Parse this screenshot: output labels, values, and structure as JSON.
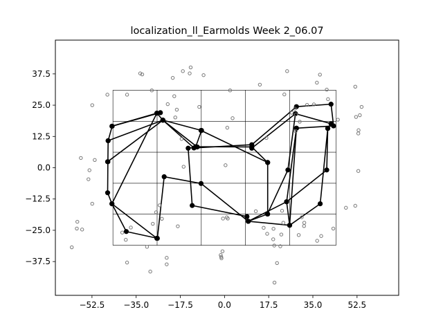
{
  "chart_data": {
    "type": "scatter",
    "title": "localization_ll_Earmolds Week 2_06.07",
    "xlabel": "",
    "ylabel": "",
    "xlim": [
      -67,
      69
    ],
    "ylim": [
      -51,
      51
    ],
    "xticks": [
      -52.5,
      -35.0,
      -17.5,
      0.0,
      17.5,
      35.0,
      52.5
    ],
    "xtick_labels": [
      "−52.5",
      "−35.0",
      "−17.5",
      "0.0",
      "17.5",
      "35.0",
      "52.5"
    ],
    "yticks": [
      -37.5,
      -25.0,
      -12.5,
      0.0,
      12.5,
      25.0,
      37.5
    ],
    "ytick_labels": [
      "−37.5",
      "−25.0",
      "−12.5",
      "0.0",
      "12.5",
      "25.0",
      "37.5"
    ],
    "grid_on": false,
    "colors": {
      "response_points": "#777777",
      "polygon": "#000000"
    },
    "grid_box": {
      "x_lines": [
        -44.2,
        -26.7,
        -9.2,
        8.3,
        25.8,
        44.2
      ],
      "y_lines": [
        31.0,
        18.5,
        6.2,
        -6.2,
        -18.5,
        -31.0
      ]
    },
    "response_points": [
      [
        -60.5,
        -31.8
      ],
      [
        -58.5,
        -24.3
      ],
      [
        -58.3,
        -21.6
      ],
      [
        -56.4,
        -24.7
      ],
      [
        -52.4,
        -14.4
      ],
      [
        -53.5,
        -1.0
      ],
      [
        -53.9,
        -4.6
      ],
      [
        -52.4,
        25.0
      ],
      [
        -51.4,
        3.1
      ],
      [
        -56.9,
        3.9
      ],
      [
        -46.4,
        29.2
      ],
      [
        -40.5,
        -25.9
      ],
      [
        -38.6,
        29.2
      ],
      [
        -39.1,
        -28.8
      ],
      [
        -38.6,
        -37.9
      ],
      [
        -37.1,
        -23.9
      ],
      [
        -33.4,
        37.7
      ],
      [
        -32.6,
        37.3
      ],
      [
        -30.7,
        -31.6
      ],
      [
        -29.4,
        -41.5
      ],
      [
        -28.4,
        -22.4
      ],
      [
        -28.8,
        30.9
      ],
      [
        -27.1,
        -17.8
      ],
      [
        -25.7,
        -15.0
      ],
      [
        -24.8,
        -20.4
      ],
      [
        -22.9,
        -36.0
      ],
      [
        -22.9,
        -38.6
      ],
      [
        -22.5,
        25.4
      ],
      [
        -20.5,
        35.9
      ],
      [
        -19.5,
        20.1
      ],
      [
        -18.9,
        23.2
      ],
      [
        -19.9,
        28.6
      ],
      [
        -18.5,
        -23.4
      ],
      [
        -17.0,
        11.5
      ],
      [
        -16.5,
        38.6
      ],
      [
        -16.2,
        0.4
      ],
      [
        -13.8,
        37.7
      ],
      [
        -13.4,
        40.1
      ],
      [
        -10.0,
        24.3
      ],
      [
        -8.3,
        37.0
      ],
      [
        1.1,
        16.0
      ],
      [
        2.2,
        30.9
      ],
      [
        3.2,
        19.8
      ],
      [
        0.4,
        1.0
      ],
      [
        -0.8,
        -33.4
      ],
      [
        -1.5,
        -34.9
      ],
      [
        -1.3,
        -35.6
      ],
      [
        -1.2,
        -36.2
      ],
      [
        -0.6,
        -20.3
      ],
      [
        0.9,
        -19.8
      ],
      [
        1.3,
        -20.3
      ],
      [
        14.0,
        33.2
      ],
      [
        15.5,
        -24.0
      ],
      [
        16.6,
        11.9
      ],
      [
        16.9,
        -26.4
      ],
      [
        19.3,
        -28.6
      ],
      [
        19.7,
        -31.1
      ],
      [
        19.4,
        -24.4
      ],
      [
        22.1,
        -31.4
      ],
      [
        20.8,
        -38.1
      ],
      [
        22.5,
        -26.7
      ],
      [
        22.8,
        -17.2
      ],
      [
        23.7,
        29.3
      ],
      [
        24.8,
        38.6
      ],
      [
        26.6,
        22.0
      ],
      [
        27.9,
        23.6
      ],
      [
        28.3,
        21.3
      ],
      [
        29.4,
        -26.9
      ],
      [
        31.5,
        -23.3
      ],
      [
        32.7,
        25.1
      ],
      [
        35.4,
        25.3
      ],
      [
        36.7,
        -29.2
      ],
      [
        36.6,
        34.0
      ],
      [
        37.8,
        37.2
      ],
      [
        38.3,
        -27.3
      ],
      [
        40.5,
        31.2
      ],
      [
        41.0,
        27.4
      ],
      [
        43.1,
        -24.3
      ],
      [
        44.9,
        19.2
      ],
      [
        48.1,
        -16.0
      ],
      [
        51.8,
        -15.2
      ],
      [
        51.8,
        32.4
      ],
      [
        52.1,
        20.3
      ],
      [
        53.0,
        -1.3
      ],
      [
        53.0,
        13.7
      ],
      [
        53.1,
        15.0
      ],
      [
        53.6,
        21.0
      ],
      [
        54.3,
        24.3
      ],
      [
        19.8,
        -45.9
      ],
      [
        23.3,
        -22.0
      ],
      [
        29.8,
        18.4
      ],
      [
        28.2,
        14.6
      ],
      [
        30.6,
        -19.8
      ],
      [
        31.6,
        -22.0
      ],
      [
        12.4,
        -17.4
      ]
    ],
    "polygons": [
      [
        [
          -25.4,
          22.0
        ],
        [
          -44.5,
          16.6
        ],
        [
          -46.1,
          10.8
        ],
        [
          -46.2,
          2.4
        ],
        [
          -46.3,
          -10.0
        ],
        [
          -44.6,
          -14.4
        ],
        [
          -38.9,
          -25.5
        ],
        [
          -26.6,
          -28.2
        ],
        [
          -23.9,
          -3.6
        ],
        [
          -9.3,
          -6.3
        ],
        [
          9.4,
          -21.4
        ],
        [
          17.1,
          -18.5
        ],
        [
          17.1,
          2.1
        ],
        [
          10.8,
          8.3
        ],
        [
          -11.4,
          8.4
        ],
        [
          -9.1,
          14.9
        ],
        [
          -24.4,
          19.0
        ],
        [
          -26.8,
          21.8
        ],
        [
          -44.6,
          16.6
        ]
      ],
      [
        [
          -26.8,
          21.8
        ],
        [
          -44.6,
          -14.4
        ],
        [
          -26.8,
          -28.2
        ]
      ],
      [
        [
          -24.4,
          19.0
        ],
        [
          -10.8,
          8.3
        ],
        [
          -14.4,
          7.8
        ],
        [
          -12.8,
          -15.1
        ],
        [
          8.9,
          -19.5
        ]
      ],
      [
        [
          -46.1,
          10.8
        ],
        [
          -24.4,
          19.0
        ],
        [
          -12.1,
          7.9
        ],
        [
          10.8,
          9.2
        ],
        [
          28.5,
          24.4
        ],
        [
          42.2,
          25.4
        ],
        [
          43.2,
          16.7
        ],
        [
          28.5,
          15.8
        ],
        [
          24.6,
          -13.6
        ],
        [
          9.4,
          -21.4
        ]
      ],
      [
        [
          -46.3,
          2.4
        ],
        [
          -24.4,
          19.0
        ]
      ],
      [
        [
          -9.3,
          14.9
        ],
        [
          17.1,
          2.1
        ]
      ],
      [
        [
          10.8,
          7.8
        ],
        [
          28.1,
          21.6
        ],
        [
          25.1,
          -0.9
        ],
        [
          17.0,
          -18.5
        ]
      ],
      [
        [
          28.1,
          21.6
        ],
        [
          42.2,
          17.6
        ],
        [
          40.9,
          15.7
        ],
        [
          40.5,
          -0.9
        ],
        [
          24.6,
          -13.6
        ],
        [
          25.8,
          -23.0
        ],
        [
          37.9,
          -14.4
        ],
        [
          40.9,
          15.7
        ]
      ],
      [
        [
          9.4,
          -21.4
        ],
        [
          25.8,
          -23.0
        ],
        [
          28.5,
          15.8
        ]
      ]
    ]
  }
}
